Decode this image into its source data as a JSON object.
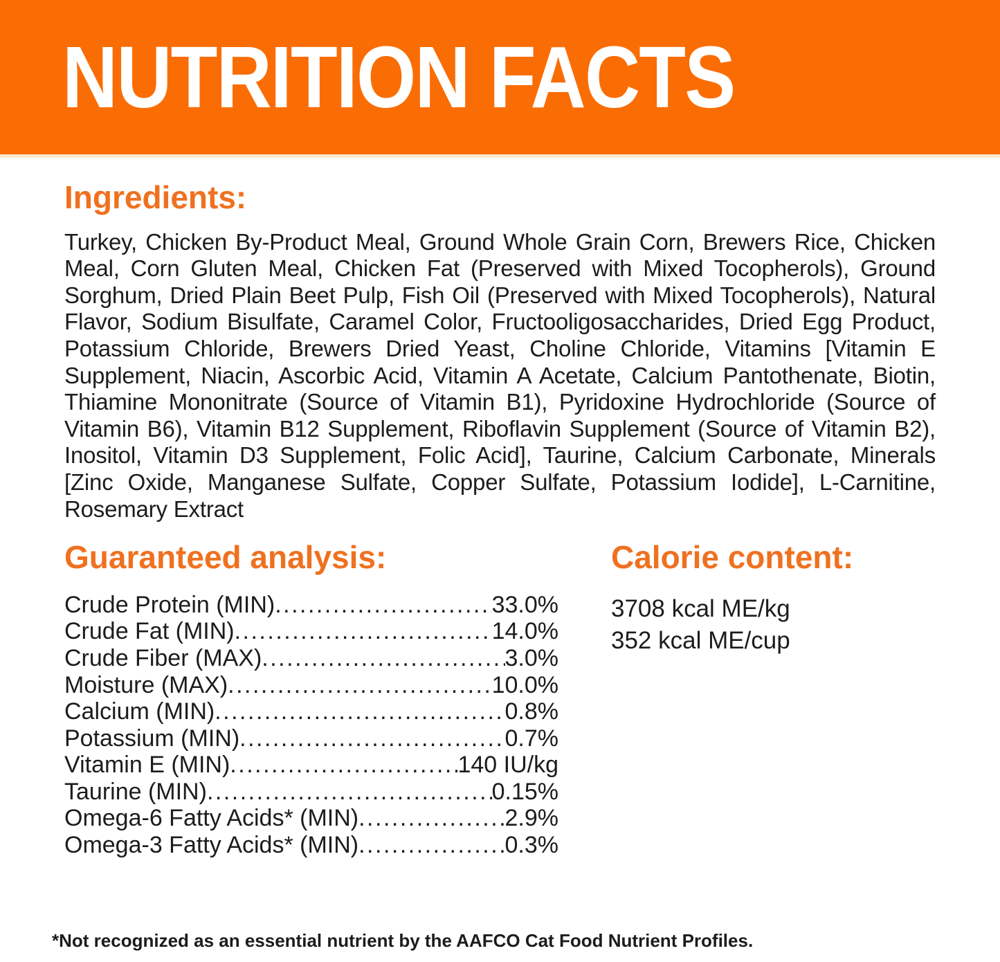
{
  "colors": {
    "banner_bg": "#FA6D05",
    "banner_text": "#FFFFFF",
    "accent_heading": "#EF7120",
    "ink": "#1C1C1C",
    "divider": "#F7EACF"
  },
  "banner": {
    "title": "NUTRITION FACTS"
  },
  "ingredients": {
    "heading": "Ingredients:",
    "text": "Turkey, Chicken By-Product Meal, Ground Whole Grain Corn, Brewers Rice, Chicken Meal, Corn Gluten Meal, Chicken Fat (Preserved with Mixed Tocopherols), Ground Sorghum, Dried Plain Beet Pulp, Fish Oil (Preserved with Mixed Tocopherols), Natural Flavor, Sodium Bisulfate, Caramel Color, Fructooligosaccharides, Dried Egg Product, Potassium Chloride, Brewers Dried Yeast, Choline Chloride, Vitamins [Vitamin E Supplement, Niacin, Ascorbic Acid, Vitamin A Acetate, Calcium Pantothenate, Biotin, Thiamine Mononitrate (Source of Vitamin B1), Pyridoxine Hydrochloride (Source of Vitamin B6), Vitamin B12 Supplement, Riboflavin Supplement (Source of Vitamin B2), Inositol, Vitamin D3 Supplement, Folic Acid], Taurine, Calcium Carbonate, Minerals [Zinc Oxide, Manganese Sulfate, Copper Sulfate, Potassium Iodide], L-Carnitine, Rosemary Extract"
  },
  "guaranteed_analysis": {
    "heading": "Guaranteed analysis:",
    "rows": [
      {
        "label": "Crude Protein (MIN)",
        "value": "33.0%"
      },
      {
        "label": "Crude Fat (MIN)",
        "value": "14.0%"
      },
      {
        "label": "Crude Fiber (MAX)",
        "value": "3.0%"
      },
      {
        "label": "Moisture (MAX)",
        "value": "10.0%"
      },
      {
        "label": "Calcium (MIN)",
        "value": "0.8%"
      },
      {
        "label": "Potassium (MIN)",
        "value": "0.7%"
      },
      {
        "label": "Vitamin E (MIN)",
        "value": "140 IU/kg"
      },
      {
        "label": "Taurine (MIN)",
        "value": "0.15%"
      },
      {
        "label": "Omega-6 Fatty Acids* (MIN)",
        "value": "2.9%"
      },
      {
        "label": "Omega-3 Fatty Acids* (MIN)",
        "value": "0.3%"
      }
    ]
  },
  "calorie_content": {
    "heading": "Calorie content:",
    "lines": [
      "3708 kcal ME/kg",
      "352 kcal ME/cup"
    ]
  },
  "footnote": "*Not recognized as an essential nutrient by the AAFCO Cat Food Nutrient Profiles."
}
